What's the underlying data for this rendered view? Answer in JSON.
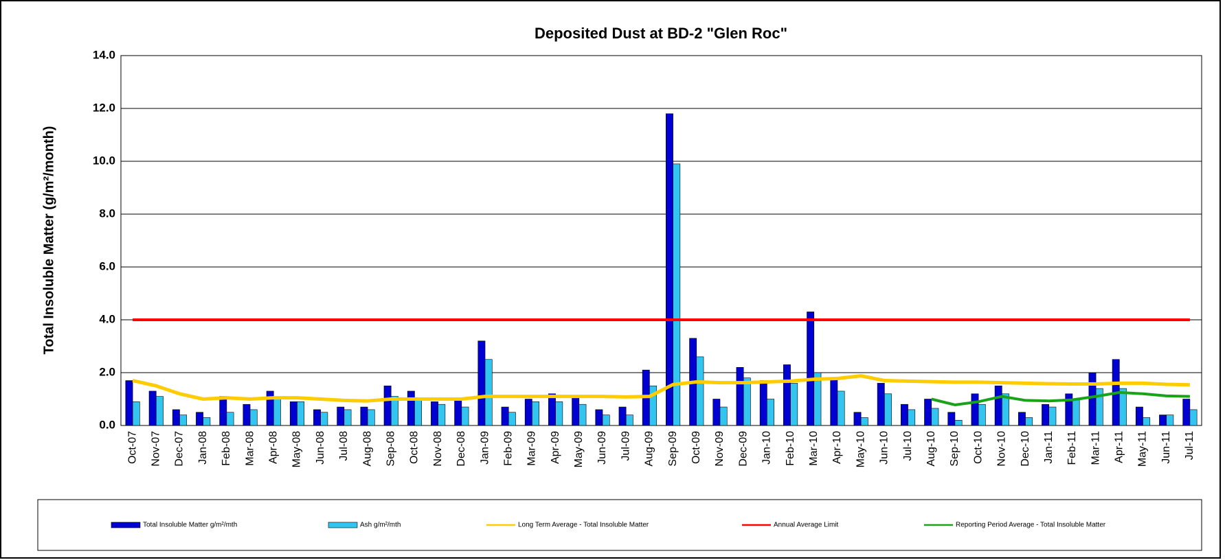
{
  "chart_data": {
    "type": "bar",
    "title": "Deposited Dust at BD-2 \"Glen Roc\"",
    "y_label": "Total Insoluble Matter (g/m²/month)",
    "categories": [
      "Oct-07",
      "Nov-07",
      "Dec-07",
      "Jan-08",
      "Feb-08",
      "Mar-08",
      "Apr-08",
      "May-08",
      "Jun-08",
      "Jul-08",
      "Aug-08",
      "Sep-08",
      "Oct-08",
      "Nov-08",
      "Dec-08",
      "Jan-09",
      "Feb-09",
      "Mar-09",
      "Apr-09",
      "May-09",
      "Jun-09",
      "Jul-09",
      "Aug-09",
      "Sep-09",
      "Oct-09",
      "Nov-09",
      "Dec-09",
      "Jan-10",
      "Feb-10",
      "Mar-10",
      "Apr-10",
      "May-10",
      "Jun-10",
      "Jul-10",
      "Aug-10",
      "Sep-10",
      "Oct-10",
      "Nov-10",
      "Dec-10",
      "Jan-11",
      "Feb-11",
      "Mar-11",
      "Apr-11",
      "May-11",
      "Jun-11",
      "Jul-11"
    ],
    "series": [
      {
        "name": "Total Insoluble Matter  g/m²/mth",
        "kind": "bar",
        "color": "#0000d0",
        "values": [
          1.7,
          1.3,
          0.6,
          0.5,
          1.1,
          0.8,
          1.3,
          0.9,
          0.6,
          0.7,
          0.7,
          1.5,
          1.3,
          0.9,
          1.0,
          3.2,
          0.7,
          1.0,
          1.2,
          1.1,
          0.6,
          0.7,
          2.1,
          11.8,
          3.3,
          1.0,
          2.2,
          1.7,
          2.3,
          4.3,
          1.8,
          0.5,
          1.6,
          0.8,
          1.0,
          0.5,
          1.2,
          1.5,
          0.5,
          0.8,
          1.2,
          2.0,
          2.5,
          0.7,
          0.4,
          1.0
        ]
      },
      {
        "name": "Ash  g/m²/mth",
        "kind": "bar",
        "color": "#33c4f0",
        "values": [
          0.9,
          1.1,
          0.4,
          0.3,
          0.5,
          0.6,
          1.0,
          0.9,
          0.5,
          0.6,
          0.6,
          1.1,
          1.0,
          0.8,
          0.7,
          2.5,
          0.5,
          0.9,
          0.9,
          0.8,
          0.4,
          0.4,
          1.5,
          9.9,
          2.6,
          0.7,
          1.8,
          1.0,
          1.6,
          2.0,
          1.3,
          0.3,
          1.2,
          0.6,
          0.65,
          0.2,
          0.8,
          1.2,
          0.3,
          0.7,
          1.0,
          1.4,
          1.4,
          0.3,
          0.4,
          0.6
        ]
      },
      {
        "name": "Long Term Average - Total Insoluble Matter",
        "kind": "line",
        "color": "#ffcc00",
        "width": 5,
        "values": [
          1.7,
          1.5,
          1.2,
          1.0,
          1.05,
          1.0,
          1.05,
          1.05,
          1.0,
          0.95,
          0.93,
          1.0,
          1.0,
          1.0,
          1.0,
          1.1,
          1.1,
          1.1,
          1.1,
          1.1,
          1.1,
          1.08,
          1.1,
          1.55,
          1.65,
          1.62,
          1.62,
          1.65,
          1.68,
          1.75,
          1.78,
          1.88,
          1.7,
          1.68,
          1.66,
          1.64,
          1.64,
          1.62,
          1.6,
          1.58,
          1.57,
          1.57,
          1.6,
          1.6,
          1.56,
          1.54
        ]
      },
      {
        "name": "Annual Average Limit",
        "kind": "line",
        "color": "#ff0000",
        "width": 4,
        "values": [
          4,
          4,
          4,
          4,
          4,
          4,
          4,
          4,
          4,
          4,
          4,
          4,
          4,
          4,
          4,
          4,
          4,
          4,
          4,
          4,
          4,
          4,
          4,
          4,
          4,
          4,
          4,
          4,
          4,
          4,
          4,
          4,
          4,
          4,
          4,
          4,
          4,
          4,
          4,
          4,
          4,
          4,
          4,
          4,
          4,
          4
        ]
      },
      {
        "name": "Reporting Period Average - Total Insoluble Matter",
        "kind": "line",
        "color": "#1aa31a",
        "width": 4,
        "values": [
          null,
          null,
          null,
          null,
          null,
          null,
          null,
          null,
          null,
          null,
          null,
          null,
          null,
          null,
          null,
          null,
          null,
          null,
          null,
          null,
          null,
          null,
          null,
          null,
          null,
          null,
          null,
          null,
          null,
          null,
          null,
          null,
          null,
          null,
          1.0,
          0.78,
          0.9,
          1.1,
          0.95,
          0.93,
          0.97,
          1.1,
          1.25,
          1.2,
          1.12,
          1.1
        ]
      }
    ],
    "ylim": [
      0,
      14
    ],
    "yticks": [
      {
        "value": 0,
        "label": "0.0"
      },
      {
        "value": 2,
        "label": "2.0"
      },
      {
        "value": 4,
        "label": "4.0"
      },
      {
        "value": 6,
        "label": "6.0"
      },
      {
        "value": 8,
        "label": "8.0"
      },
      {
        "value": 10,
        "label": "10.0"
      },
      {
        "value": 12,
        "label": "12.0"
      },
      {
        "value": 14,
        "label": "14.0"
      }
    ],
    "grid": true,
    "legend": "bottom"
  }
}
